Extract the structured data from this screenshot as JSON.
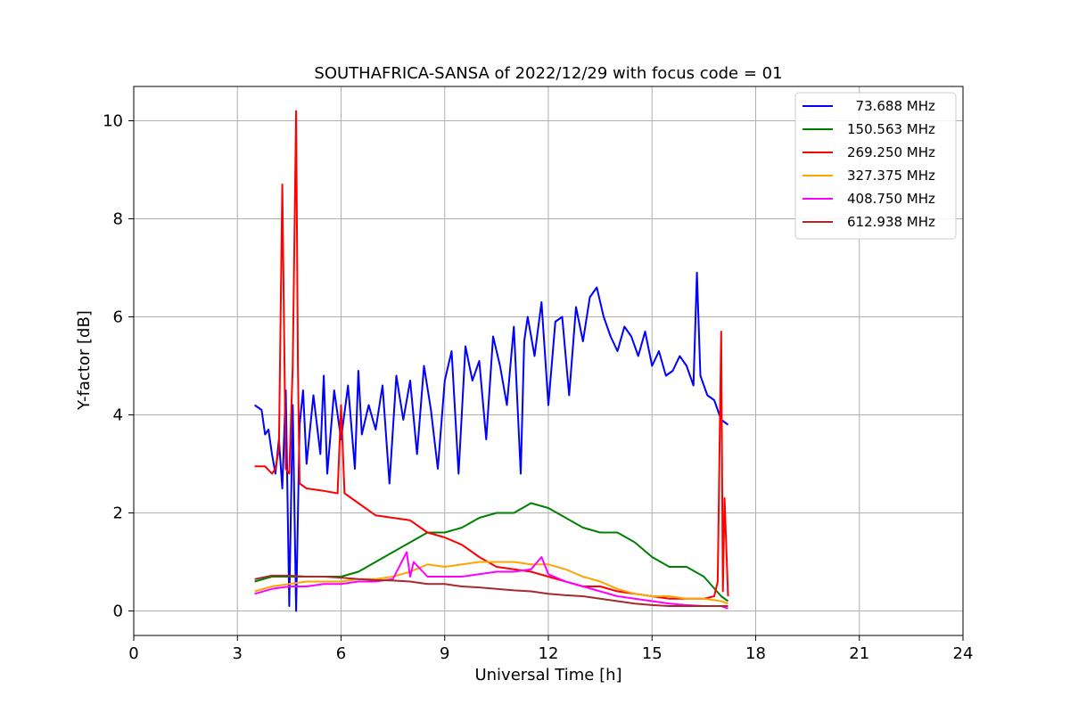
{
  "chart_data": {
    "type": "line",
    "title": "SOUTHAFRICA-SANSA of 2022/12/29 with focus code = 01",
    "xlabel": "Universal Time [h]",
    "ylabel": "Y-factor [dB]",
    "xlim": [
      0,
      24
    ],
    "ylim": [
      -0.5,
      10.7
    ],
    "xticks": [
      0,
      3,
      6,
      9,
      12,
      15,
      18,
      21,
      24
    ],
    "xtick_labels": [
      "0",
      "3",
      "6",
      "9",
      "12",
      "15",
      "18",
      "21",
      "24"
    ],
    "yticks": [
      0,
      2,
      4,
      6,
      8,
      10
    ],
    "ytick_labels": [
      "0",
      "2",
      "4",
      "6",
      "8",
      "10"
    ],
    "grid": true,
    "legend_position": "top-right",
    "series": [
      {
        "name": "  73.688 MHz",
        "color": "#0000ff",
        "x": [
          3.5,
          3.7,
          3.8,
          3.9,
          4.0,
          4.1,
          4.2,
          4.3,
          4.4,
          4.5,
          4.6,
          4.7,
          4.8,
          4.9,
          5.0,
          5.2,
          5.4,
          5.5,
          5.6,
          5.8,
          6.0,
          6.2,
          6.4,
          6.5,
          6.6,
          6.8,
          7.0,
          7.2,
          7.4,
          7.6,
          7.8,
          8.0,
          8.2,
          8.4,
          8.6,
          8.8,
          9.0,
          9.2,
          9.4,
          9.6,
          9.8,
          10.0,
          10.2,
          10.4,
          10.6,
          10.8,
          11.0,
          11.2,
          11.3,
          11.4,
          11.6,
          11.8,
          12.0,
          12.2,
          12.4,
          12.6,
          12.8,
          13.0,
          13.2,
          13.4,
          13.6,
          13.8,
          14.0,
          14.2,
          14.4,
          14.6,
          14.8,
          15.0,
          15.2,
          15.4,
          15.6,
          15.8,
          16.0,
          16.2,
          16.3,
          16.4,
          16.6,
          16.8,
          17.0,
          17.2
        ],
        "y": [
          4.2,
          4.1,
          3.6,
          3.7,
          3.2,
          2.8,
          3.5,
          2.5,
          4.5,
          0.1,
          4.2,
          0.0,
          3.8,
          4.5,
          3.0,
          4.4,
          3.2,
          4.8,
          2.8,
          4.5,
          3.5,
          4.6,
          2.9,
          4.9,
          3.6,
          4.2,
          3.7,
          4.6,
          2.6,
          4.8,
          3.9,
          4.7,
          3.2,
          5.0,
          4.1,
          2.9,
          4.7,
          5.3,
          2.8,
          5.4,
          4.7,
          5.1,
          3.5,
          5.6,
          5.0,
          4.2,
          5.8,
          2.8,
          5.5,
          6.0,
          5.2,
          6.3,
          4.2,
          5.9,
          6.0,
          4.4,
          6.2,
          5.5,
          6.4,
          6.6,
          6.0,
          5.6,
          5.3,
          5.8,
          5.6,
          5.2,
          5.7,
          5.0,
          5.3,
          4.8,
          4.9,
          5.2,
          5.0,
          4.6,
          6.9,
          4.8,
          4.4,
          4.3,
          3.9,
          3.8
        ]
      },
      {
        "name": "150.563 MHz",
        "color": "#008000",
        "x": [
          3.5,
          4.0,
          4.5,
          5.0,
          5.5,
          6.0,
          6.5,
          7.0,
          7.5,
          8.0,
          8.5,
          9.0,
          9.5,
          10.0,
          10.5,
          11.0,
          11.5,
          12.0,
          12.5,
          13.0,
          13.5,
          14.0,
          14.5,
          15.0,
          15.5,
          16.0,
          16.5,
          17.0,
          17.2
        ],
        "y": [
          0.6,
          0.7,
          0.7,
          0.7,
          0.7,
          0.7,
          0.8,
          1.0,
          1.2,
          1.4,
          1.6,
          1.6,
          1.7,
          1.9,
          2.0,
          2.0,
          2.2,
          2.1,
          1.9,
          1.7,
          1.6,
          1.6,
          1.4,
          1.1,
          0.9,
          0.9,
          0.7,
          0.3,
          0.2
        ]
      },
      {
        "name": "269.250 MHz",
        "color": "#ff0000",
        "x": [
          3.5,
          3.8,
          4.0,
          4.1,
          4.2,
          4.3,
          4.4,
          4.5,
          4.6,
          4.7,
          4.75,
          4.8,
          5.0,
          5.5,
          5.9,
          6.0,
          6.1,
          6.5,
          7.0,
          7.5,
          8.0,
          8.5,
          9.0,
          9.5,
          10.0,
          10.5,
          11.0,
          11.5,
          12.0,
          12.5,
          13.0,
          13.5,
          14.0,
          14.5,
          15.0,
          15.5,
          16.0,
          16.5,
          16.8,
          16.9,
          17.0,
          17.05,
          17.1,
          17.2
        ],
        "y": [
          2.95,
          2.95,
          2.8,
          2.9,
          3.3,
          8.7,
          2.9,
          2.8,
          5.0,
          10.2,
          5.0,
          2.6,
          2.5,
          2.45,
          2.4,
          4.2,
          2.4,
          2.2,
          1.95,
          1.9,
          1.85,
          1.6,
          1.5,
          1.35,
          1.1,
          0.9,
          0.85,
          0.8,
          0.7,
          0.6,
          0.5,
          0.5,
          0.4,
          0.35,
          0.3,
          0.25,
          0.25,
          0.25,
          0.3,
          0.6,
          5.7,
          0.4,
          2.3,
          0.3
        ]
      },
      {
        "name": "327.375 MHz",
        "color": "#ffa500",
        "x": [
          3.5,
          4.0,
          4.5,
          5.0,
          5.5,
          6.0,
          6.5,
          7.0,
          7.5,
          8.0,
          8.5,
          9.0,
          9.5,
          10.0,
          10.5,
          11.0,
          11.5,
          12.0,
          12.5,
          13.0,
          13.5,
          14.0,
          14.5,
          15.0,
          15.5,
          16.0,
          16.5,
          17.0,
          17.2
        ],
        "y": [
          0.4,
          0.5,
          0.55,
          0.6,
          0.6,
          0.6,
          0.65,
          0.65,
          0.7,
          0.8,
          0.95,
          0.9,
          0.95,
          1.0,
          1.0,
          1.0,
          0.95,
          0.95,
          0.85,
          0.7,
          0.6,
          0.45,
          0.35,
          0.3,
          0.3,
          0.25,
          0.25,
          0.2,
          0.15
        ]
      },
      {
        "name": "408.750 MHz",
        "color": "#ff00ff",
        "x": [
          3.5,
          4.0,
          4.5,
          5.0,
          5.5,
          6.0,
          6.5,
          7.0,
          7.5,
          7.9,
          8.0,
          8.1,
          8.5,
          9.0,
          9.5,
          10.0,
          10.5,
          11.0,
          11.5,
          11.8,
          12.0,
          12.5,
          13.0,
          13.5,
          14.0,
          14.5,
          15.0,
          15.5,
          16.0,
          16.5,
          17.0,
          17.2
        ],
        "y": [
          0.35,
          0.45,
          0.5,
          0.5,
          0.55,
          0.55,
          0.6,
          0.6,
          0.65,
          1.2,
          0.7,
          1.0,
          0.7,
          0.7,
          0.7,
          0.75,
          0.8,
          0.8,
          0.85,
          1.1,
          0.75,
          0.6,
          0.5,
          0.4,
          0.3,
          0.25,
          0.2,
          0.15,
          0.12,
          0.1,
          0.1,
          0.05
        ]
      },
      {
        "name": "612.938 MHz",
        "color": "#a52a2a",
        "x": [
          3.5,
          4.0,
          4.5,
          5.0,
          5.5,
          6.0,
          6.5,
          7.0,
          7.5,
          8.0,
          8.5,
          9.0,
          9.5,
          10.0,
          10.5,
          11.0,
          11.5,
          12.0,
          12.5,
          13.0,
          13.5,
          14.0,
          14.5,
          15.0,
          15.5,
          16.0,
          16.5,
          17.0,
          17.2
        ],
        "y": [
          0.65,
          0.72,
          0.72,
          0.7,
          0.7,
          0.68,
          0.65,
          0.63,
          0.62,
          0.6,
          0.55,
          0.55,
          0.5,
          0.48,
          0.45,
          0.42,
          0.4,
          0.35,
          0.32,
          0.3,
          0.25,
          0.2,
          0.15,
          0.12,
          0.1,
          0.1,
          0.1,
          0.1,
          0.1
        ]
      }
    ]
  }
}
